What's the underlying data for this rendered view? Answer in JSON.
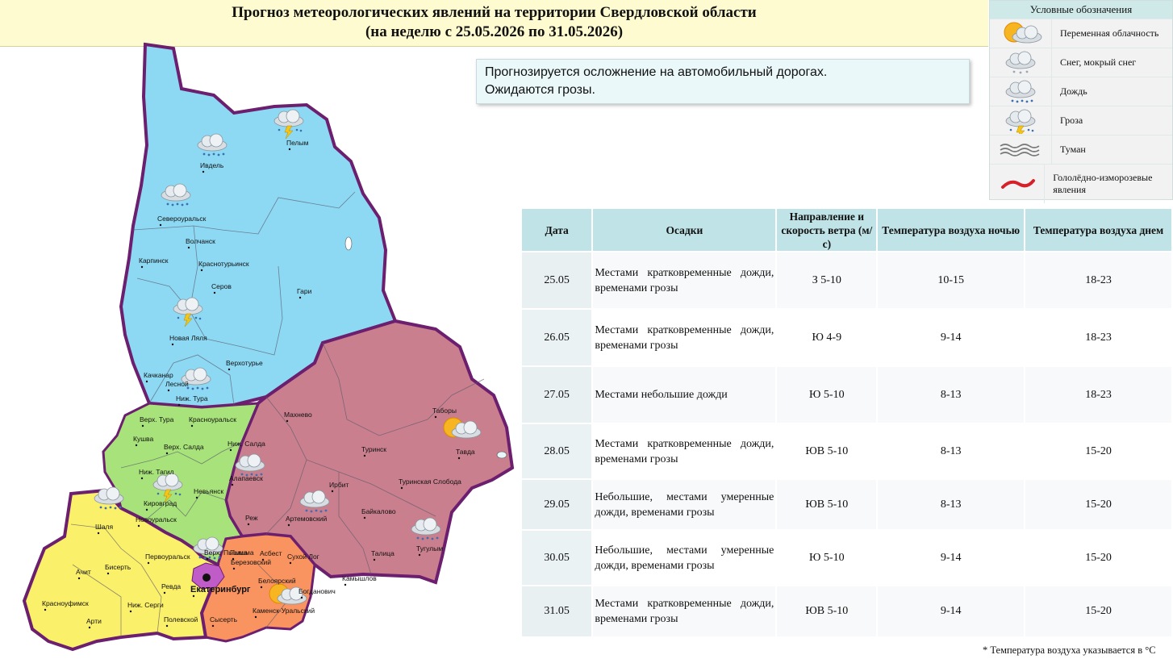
{
  "header": {
    "title_line1": "Прогноз метеорологических явлений на территории Свердловской области",
    "title_line2": "(на неделю с 25.05.2026 по 31.05.2026)"
  },
  "legend": {
    "title": "Условные обозначения",
    "items": [
      {
        "icon": "partly-cloudy-icon",
        "label": "Переменная облачность"
      },
      {
        "icon": "snow-sleet-icon",
        "label": "Снег, мокрый снег"
      },
      {
        "icon": "rain-icon",
        "label": "Дождь"
      },
      {
        "icon": "thunderstorm-icon",
        "label": "Гроза"
      },
      {
        "icon": "fog-icon",
        "label": "Туман"
      },
      {
        "icon": "ice-icon",
        "label": "Гололёдно-изморозевые явления"
      }
    ]
  },
  "notice": {
    "line1": "Прогнозируется осложнение на автомобильный дорогах.",
    "line2": "Ожидаются грозы."
  },
  "table": {
    "headers": [
      "Дата",
      "Осадки",
      "Направление и скорость ветра (м/с)",
      "Температура воздуха ночью",
      "Температура воздуха днем"
    ],
    "rows": [
      {
        "date": "25.05",
        "precip": "Местами кратковременные дожди, временами грозы",
        "wind": "З 5-10",
        "night": "10-15",
        "day": "18-23"
      },
      {
        "date": "26.05",
        "precip": "Местами кратковременные дожди, временами грозы",
        "wind": "Ю 4-9",
        "night": "9-14",
        "day": "18-23"
      },
      {
        "date": "27.05",
        "precip": "Местами небольшие дожди",
        "wind": "Ю 5-10",
        "night": "8-13",
        "day": "18-23"
      },
      {
        "date": "28.05",
        "precip": "Местами кратковременные дожди, временами грозы",
        "wind": "ЮВ 5-10",
        "night": "8-13",
        "day": "15-20"
      },
      {
        "date": "29.05",
        "precip": "Небольшие, местами умеренные дожди, временами грозы",
        "wind": "ЮВ 5-10",
        "night": "8-13",
        "day": "15-20"
      },
      {
        "date": "30.05",
        "precip": "Небольшие, местами умеренные дожди, временами грозы",
        "wind": "Ю 5-10",
        "night": "9-14",
        "day": "15-20"
      },
      {
        "date": "31.05",
        "precip": "Местами кратковременные дожди, временами грозы",
        "wind": "ЮВ 5-10",
        "night": "9-14",
        "day": "15-20"
      }
    ]
  },
  "footnote": "* Температура воздуха указывается в °С",
  "map": {
    "colors": {
      "north": "#8dd9f3",
      "east": "#c97f8d",
      "west": "#a8e27a",
      "southwest": "#fbf06a",
      "south": "#f9935f",
      "ekb": "#c05cc8",
      "border": "#6d1f6f"
    },
    "cities": [
      "Пелым",
      "Ивдель",
      "Североуральск",
      "Волчанск",
      "Карпинск",
      "Краснотурьинск",
      "Серов",
      "Гари",
      "Новая Ляля",
      "Верхотурье",
      "Качканар",
      "Лесной",
      "Ниж. Тура",
      "Верх. Тура",
      "Красноуральск",
      "Кушва",
      "Верх. Салда",
      "Ниж. Салда",
      "Махнево",
      "Таборы",
      "Туринск",
      "Тавда",
      "Ниж. Тагил",
      "Алапаевск",
      "Кировград",
      "Невьянск",
      "Новоуральск",
      "Шаля",
      "Реж",
      "Артемовский",
      "Ирбит",
      "Туринская Слобода",
      "Байкалово",
      "Тугулым",
      "Верх. Пышма",
      "Пышма",
      "Асбест",
      "Сухой Лог",
      "Березовский",
      "Белоярский",
      "Первоуральск",
      "Бисерть",
      "Ачит",
      "Ревда",
      "Талица",
      "Камышлов",
      "Богданович",
      "Красноуфимск",
      "Ниж. Серги",
      "Арти",
      "Полевской",
      "Сысерть",
      "Каменск-Уральский",
      "Екатеринбург"
    ]
  }
}
